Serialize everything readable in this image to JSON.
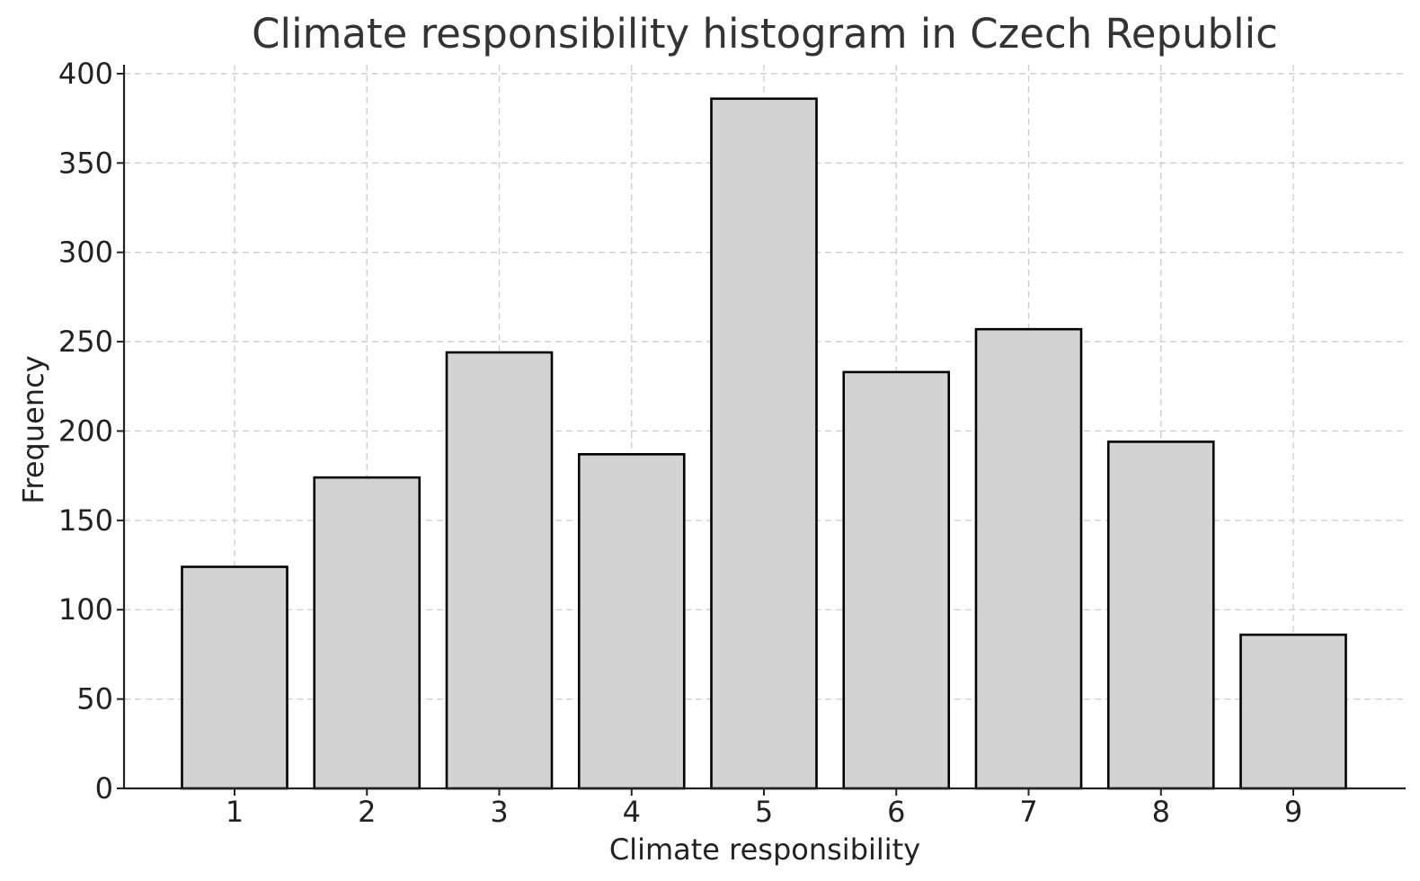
{
  "chart_data": {
    "type": "bar",
    "title": "Climate responsibility histogram in Czech Republic",
    "xlabel": "Climate responsibility",
    "ylabel": "Frequency",
    "categories": [
      "1",
      "2",
      "3",
      "4",
      "5",
      "6",
      "7",
      "8",
      "9"
    ],
    "values": [
      124,
      174,
      244,
      187,
      386,
      233,
      257,
      194,
      86
    ],
    "ylim": [
      0,
      405
    ],
    "yticks": [
      0,
      50,
      100,
      150,
      200,
      250,
      300,
      350,
      400
    ],
    "grid": true,
    "colors": {
      "bar_fill": "#d3d3d3",
      "bar_edge": "#000000",
      "grid": "#cccccc",
      "text": "#222222"
    }
  }
}
